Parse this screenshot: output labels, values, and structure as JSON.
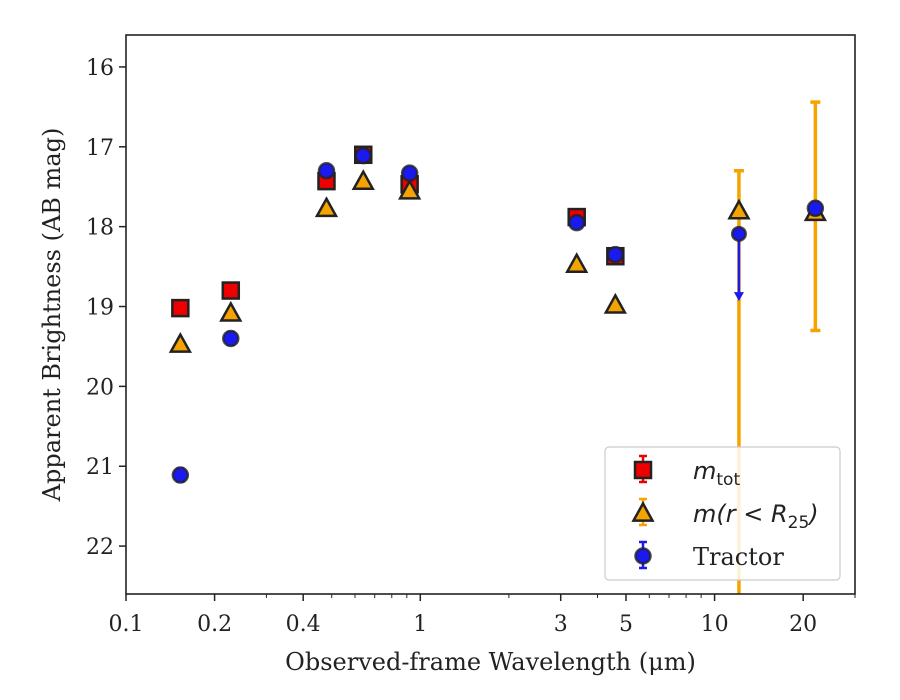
{
  "chart_data": {
    "type": "scatter",
    "xlabel": "Observed-frame Wavelength (μm)",
    "ylabel": "Apparent Brightness (AB mag)",
    "x_scale": "log",
    "xlim": [
      0.1,
      30
    ],
    "ylim": [
      22.6,
      15.6
    ],
    "y_inverted": true,
    "xticks": [
      {
        "value": 0.1,
        "label": "0.1"
      },
      {
        "value": 0.2,
        "label": "0.2"
      },
      {
        "value": 0.4,
        "label": "0.4"
      },
      {
        "value": 1,
        "label": "1"
      },
      {
        "value": 3,
        "label": "3"
      },
      {
        "value": 5,
        "label": "5"
      },
      {
        "value": 10,
        "label": "10"
      },
      {
        "value": 20,
        "label": "20"
      }
    ],
    "yticks": [
      {
        "value": 16,
        "label": "16"
      },
      {
        "value": 17,
        "label": "17"
      },
      {
        "value": 18,
        "label": "18"
      },
      {
        "value": 19,
        "label": "19"
      },
      {
        "value": 20,
        "label": "20"
      },
      {
        "value": 21,
        "label": "21"
      },
      {
        "value": 22,
        "label": "22"
      }
    ],
    "legend_position": "lower-right",
    "series": [
      {
        "name": "m_tot",
        "legend_main": "m",
        "legend_sub": "tot",
        "legend_tail": "",
        "marker": "square",
        "color": "#ee0000",
        "edge_color": "#222222",
        "errcolor": "#ee0000",
        "points": [
          {
            "x": 0.153,
            "y": 19.02,
            "err": 0.05
          },
          {
            "x": 0.227,
            "y": 18.8,
            "err": 0.05
          },
          {
            "x": 0.48,
            "y": 17.43,
            "err": 0.04
          },
          {
            "x": 0.64,
            "y": 17.1,
            "err": 0.04
          },
          {
            "x": 0.92,
            "y": 17.47,
            "err": 0.04
          },
          {
            "x": 3.4,
            "y": 17.88,
            "err": 0.05
          },
          {
            "x": 4.6,
            "y": 18.37,
            "err": 0.05
          }
        ]
      },
      {
        "name": "m(r < R_25)",
        "legend_main": "m(r < R",
        "legend_sub": "25",
        "legend_tail": ")",
        "marker": "triangle",
        "color": "#f5a300",
        "edge_color": "#222222",
        "errcolor": "#f5a300",
        "points": [
          {
            "x": 0.153,
            "y": 19.47,
            "err": 0.03
          },
          {
            "x": 0.227,
            "y": 19.08,
            "err": 0.03
          },
          {
            "x": 0.48,
            "y": 17.77,
            "err": 0.03
          },
          {
            "x": 0.64,
            "y": 17.43,
            "err": 0.03
          },
          {
            "x": 0.92,
            "y": 17.55,
            "err": 0.03
          },
          {
            "x": 3.4,
            "y": 18.47,
            "err": 0.03
          },
          {
            "x": 4.6,
            "y": 18.98,
            "err": 0.03
          },
          {
            "x": 12.1,
            "y": 17.8,
            "err_low": 0.5,
            "err_high": 8.0
          },
          {
            "x": 22.0,
            "y": 17.82,
            "err_low": 1.38,
            "err_high": 1.48
          }
        ]
      },
      {
        "name": "Tractor",
        "legend_main": "Tractor",
        "legend_sub": "",
        "legend_tail": "",
        "marker": "circle",
        "color": "#1a1aee",
        "edge_color": "#222222",
        "errcolor": "#1a1aee",
        "points": [
          {
            "x": 0.153,
            "y": 21.11,
            "err": 0.08
          },
          {
            "x": 0.227,
            "y": 19.4,
            "err": 0.08
          },
          {
            "x": 0.48,
            "y": 17.3,
            "err": 0.06
          },
          {
            "x": 0.64,
            "y": 17.11,
            "err": 0.05
          },
          {
            "x": 0.92,
            "y": 17.33,
            "err": 0.06
          },
          {
            "x": 3.4,
            "y": 17.95,
            "err": 0.06
          },
          {
            "x": 4.6,
            "y": 18.35,
            "err": 0.06
          },
          {
            "x": 12.1,
            "y": 18.09,
            "upper_limit": true,
            "arrow_to": 18.92
          },
          {
            "x": 22.0,
            "y": 17.77,
            "err": 0.08
          }
        ]
      }
    ]
  }
}
